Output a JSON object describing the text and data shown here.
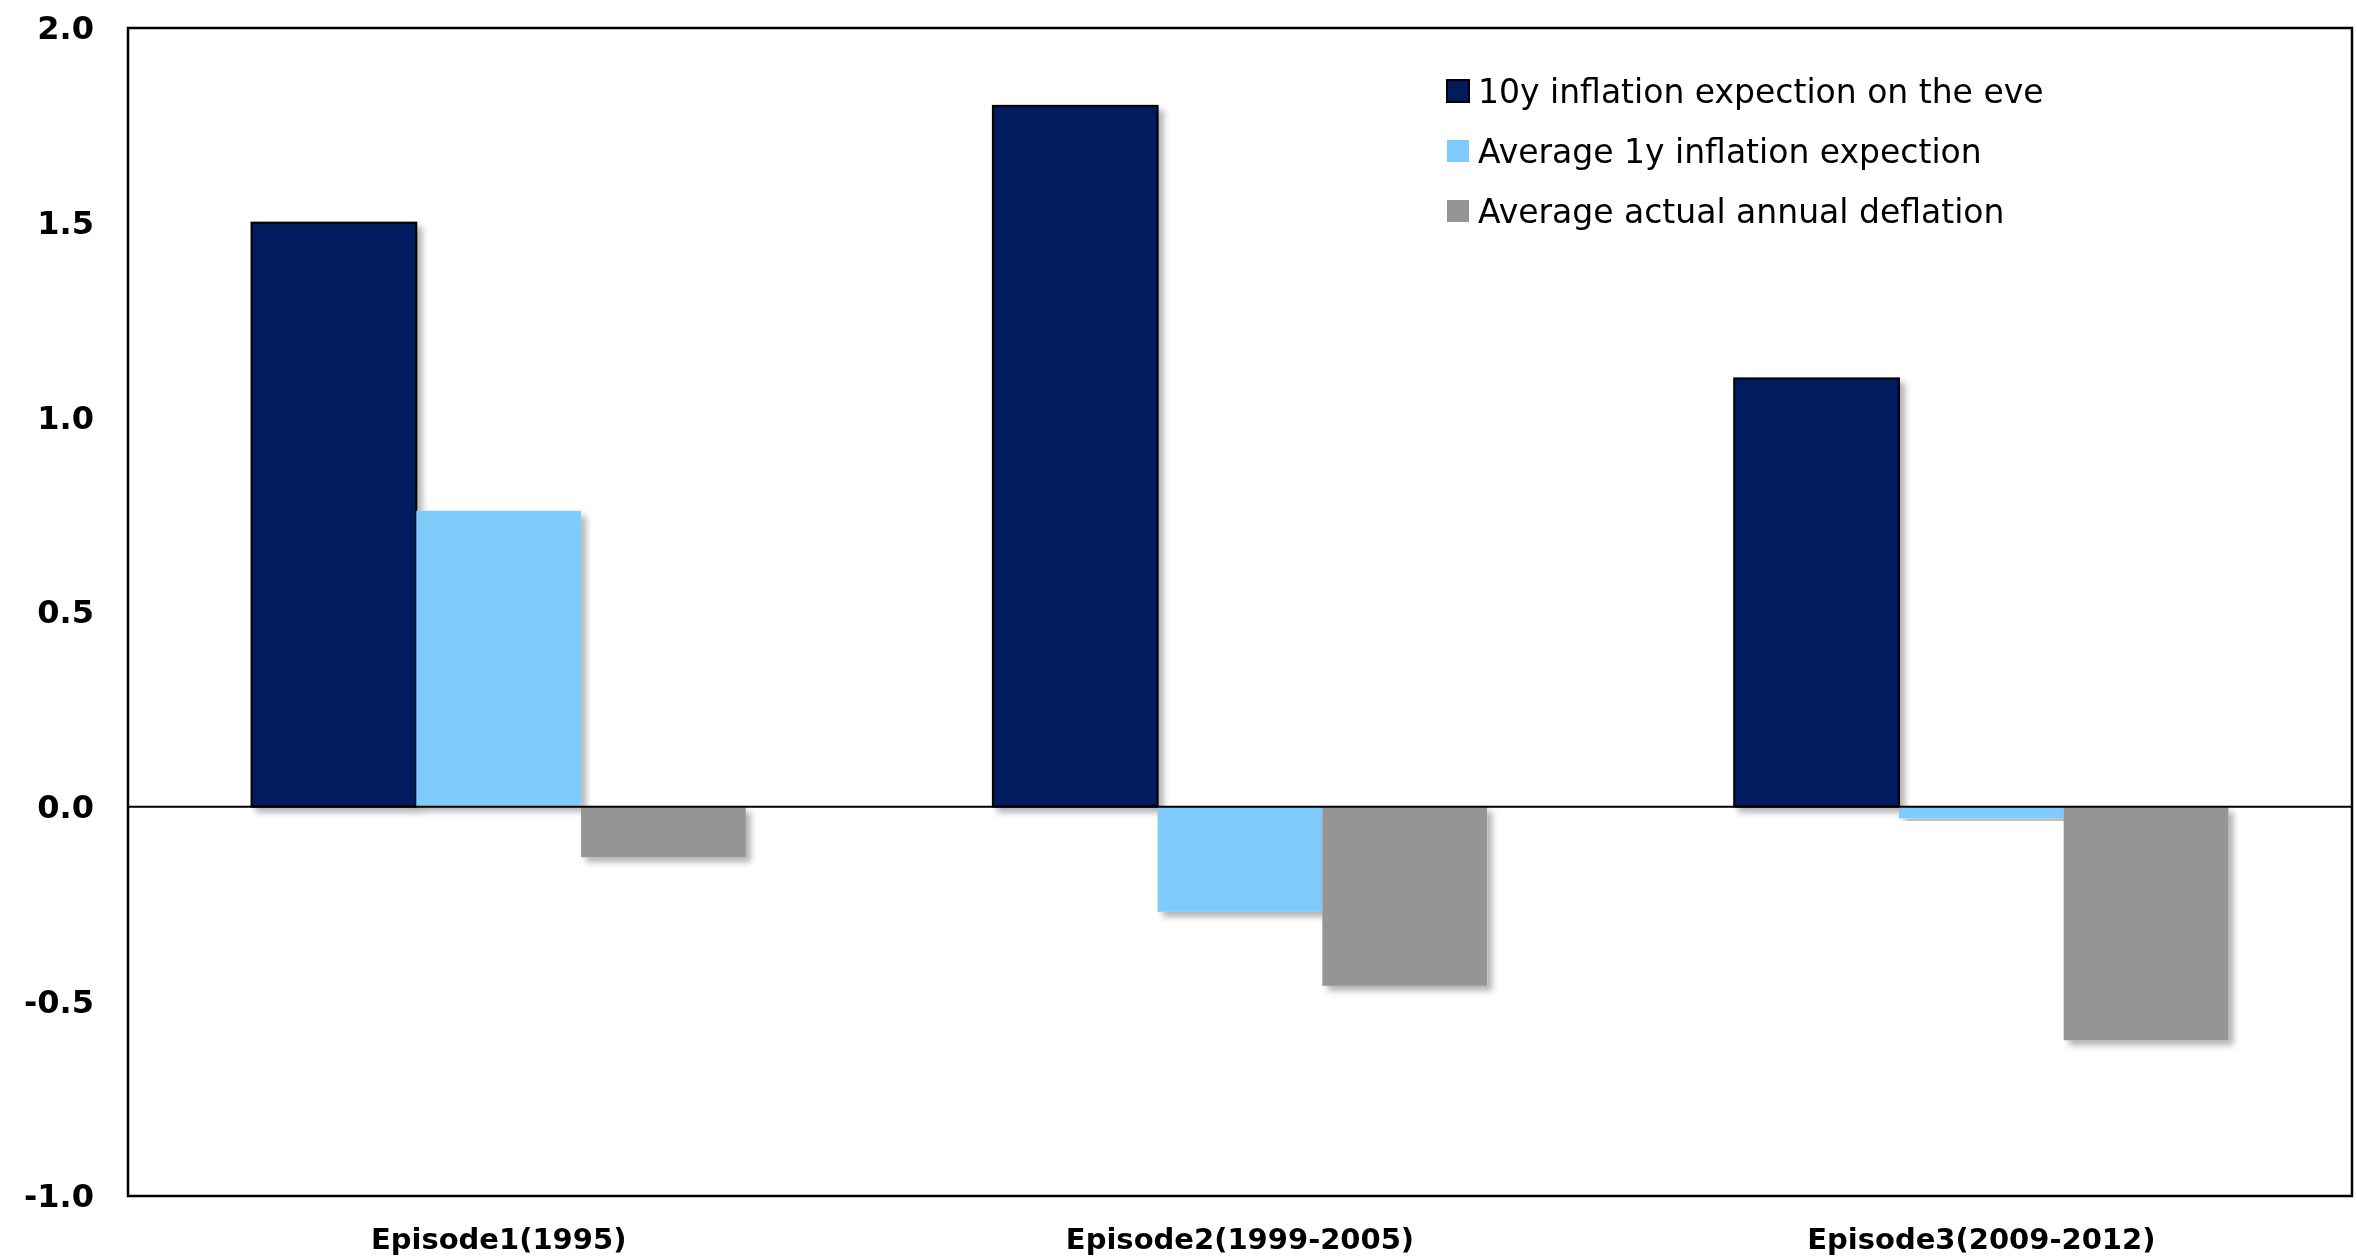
{
  "chart_data": {
    "type": "bar",
    "categories": [
      "Episode1(1995)",
      "Episode2(1999-2005)",
      "Episode3(2009-2012)"
    ],
    "series": [
      {
        "name": "10y inflation expection on the eve",
        "color": "#021a5e",
        "values": [
          1.5,
          1.8,
          1.1
        ]
      },
      {
        "name": "Average 1y inflation expection",
        "color": "#7fcbfc",
        "values": [
          0.76,
          -0.27,
          -0.03
        ]
      },
      {
        "name": "Average actual annual deflation",
        "color": "#959595",
        "values": [
          -0.13,
          -0.46,
          -0.6
        ]
      }
    ],
    "ylim": [
      -1,
      2
    ],
    "yticks": [
      {
        "value": -1,
        "label": "-1.0"
      },
      {
        "value": -0.5,
        "label": "-0.5"
      },
      {
        "value": 0,
        "label": "0.0"
      },
      {
        "value": 0.5,
        "label": "0.5"
      },
      {
        "value": 1,
        "label": "1.0"
      },
      {
        "value": 1.5,
        "label": "1.5"
      },
      {
        "value": 2,
        "label": "2.0"
      }
    ],
    "legend": "top right"
  }
}
